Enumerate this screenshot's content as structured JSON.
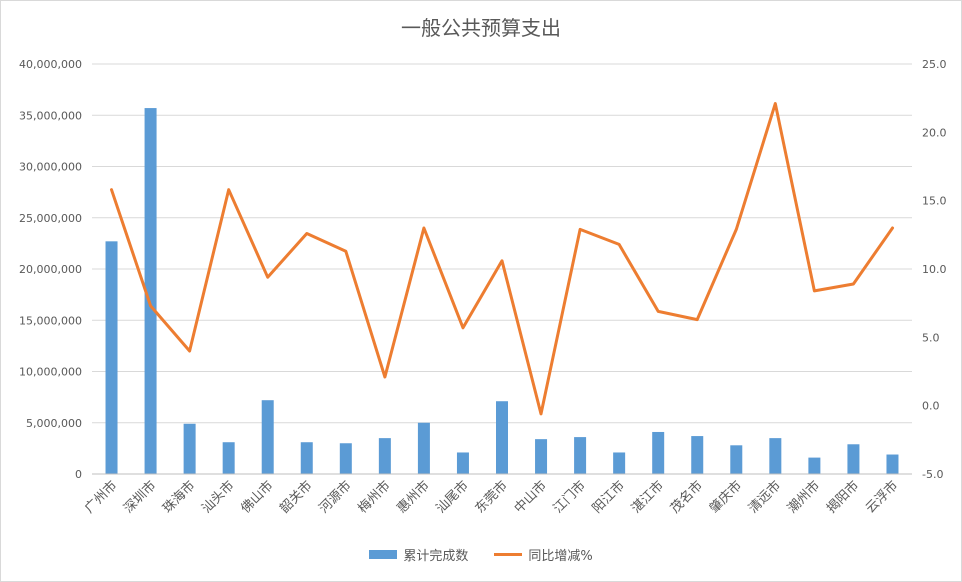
{
  "chart_data": {
    "type": "bar",
    "title": "一般公共预算支出",
    "categories": [
      "广州市",
      "深圳市",
      "珠海市",
      "汕头市",
      "佛山市",
      "韶关市",
      "河源市",
      "梅州市",
      "惠州市",
      "汕尾市",
      "东莞市",
      "中山市",
      "江门市",
      "阳江市",
      "湛江市",
      "茂名市",
      "肇庆市",
      "清远市",
      "潮州市",
      "揭阳市",
      "云浮市"
    ],
    "series": [
      {
        "name": "累计完成数",
        "type": "bar",
        "axis": "left",
        "color": "#5b9bd5",
        "values": [
          22700000,
          35700000,
          4900000,
          3100000,
          7200000,
          3100000,
          3000000,
          3500000,
          5000000,
          2100000,
          7100000,
          3400000,
          3600000,
          2100000,
          4100000,
          3700000,
          2800000,
          3500000,
          1600000,
          2900000,
          1900000
        ]
      },
      {
        "name": "同比增减%",
        "type": "line",
        "axis": "right",
        "color": "#ed7d31",
        "values": [
          15.8,
          7.3,
          4.0,
          15.8,
          9.4,
          12.6,
          11.3,
          2.1,
          13.0,
          5.7,
          10.6,
          -0.6,
          12.9,
          11.8,
          6.9,
          6.3,
          12.9,
          22.1,
          8.4,
          8.9,
          13.0
        ]
      }
    ],
    "y_left": {
      "min": 0,
      "max": 40000000,
      "step": 5000000,
      "ticks": [
        "0",
        "5,000,000",
        "10,000,000",
        "15,000,000",
        "20,000,000",
        "25,000,000",
        "30,000,000",
        "35,000,000",
        "40,000,000"
      ]
    },
    "y_right": {
      "min": -5,
      "max": 25,
      "step": 5,
      "ticks": [
        "-5.0",
        "0.0",
        "5.0",
        "10.0",
        "15.0",
        "20.0",
        "25.0"
      ]
    },
    "grid": true,
    "legend_position": "bottom"
  }
}
